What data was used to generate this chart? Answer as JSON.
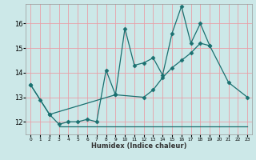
{
  "xlabel": "Humidex (Indice chaleur)",
  "bg_color": "#cce8e8",
  "grid_color": "#e8a0a8",
  "line_color": "#1a7070",
  "xlim": [
    -0.5,
    23.5
  ],
  "ylim": [
    11.5,
    16.8
  ],
  "yticks": [
    12,
    13,
    14,
    15,
    16
  ],
  "xticks": [
    0,
    1,
    2,
    3,
    4,
    5,
    6,
    7,
    8,
    9,
    10,
    11,
    12,
    13,
    14,
    15,
    16,
    17,
    18,
    19,
    20,
    21,
    22,
    23
  ],
  "line1_x": [
    0,
    1,
    2,
    3,
    4,
    5,
    6,
    7,
    8,
    9,
    10,
    11,
    12,
    13,
    14,
    15,
    16,
    17,
    18,
    19,
    21,
    23
  ],
  "line1_y": [
    13.5,
    12.9,
    12.3,
    11.9,
    12.0,
    12.0,
    12.1,
    12.0,
    14.1,
    13.1,
    15.8,
    14.3,
    14.4,
    14.6,
    13.9,
    15.6,
    16.7,
    15.2,
    16.0,
    15.1,
    13.6,
    13.0
  ],
  "line2_x": [
    0,
    2,
    9,
    12,
    13,
    14,
    15,
    16,
    17,
    18,
    19
  ],
  "line2_y": [
    13.5,
    12.3,
    13.1,
    13.0,
    13.3,
    13.8,
    14.2,
    14.5,
    14.8,
    15.2,
    15.1
  ],
  "line3_x": [
    3,
    20,
    23
  ],
  "line3_y": [
    11.8,
    11.8,
    11.8
  ],
  "line3_break": 20
}
